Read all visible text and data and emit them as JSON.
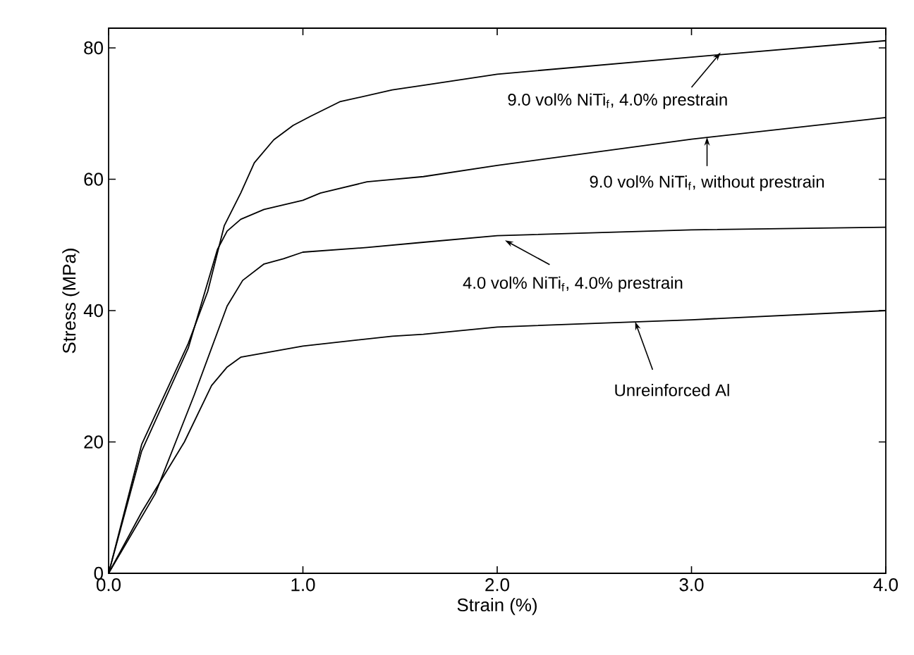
{
  "chart_data": {
    "type": "line",
    "xlabel": "Strain (%)",
    "ylabel": "Stress (MPa)",
    "xlim": [
      0,
      4
    ],
    "ylim": [
      0,
      83
    ],
    "xticks": [
      {
        "value": 0,
        "label": "0.0"
      },
      {
        "value": 1,
        "label": "1.0"
      },
      {
        "value": 2,
        "label": "2.0"
      },
      {
        "value": 3,
        "label": "3.0"
      },
      {
        "value": 4,
        "label": "4.0"
      }
    ],
    "yticks": [
      0,
      20,
      40,
      60,
      80
    ],
    "marker": "none",
    "line_style": "solid",
    "series": [
      {
        "color": "#000000",
        "x": [
          0,
          0.17,
          0.41,
          0.51,
          0.595,
          0.68,
          0.75,
          0.85,
          0.95,
          1.04,
          1.19,
          1.46,
          1.62,
          2.0,
          3.0,
          4.0
        ],
        "values": [
          0,
          19.6,
          35,
          42.9,
          52.9,
          57.9,
          62.5,
          66,
          68.2,
          69.6,
          71.8,
          73.6,
          74.3,
          76.0,
          78.6,
          81.1
        ]
      },
      {
        "color": "#000000",
        "x": [
          0,
          0.17,
          0.41,
          0.56,
          0.61,
          0.68,
          0.8,
          1.0,
          1.09,
          1.33,
          1.62,
          2.0,
          3.0,
          4.0
        ],
        "values": [
          0,
          18.6,
          34.3,
          49.3,
          52.1,
          53.9,
          55.4,
          56.8,
          57.9,
          59.6,
          60.4,
          62.1,
          66.1,
          69.4
        ]
      },
      {
        "color": "#000000",
        "x": [
          0,
          0.24,
          0.44,
          0.61,
          0.69,
          0.8,
          0.9,
          1.0,
          1.33,
          1.62,
          2.0,
          3.0,
          4.0
        ],
        "values": [
          0,
          12.1,
          27.1,
          40.7,
          44.6,
          47.1,
          47.9,
          48.9,
          49.6,
          50.4,
          51.4,
          52.3,
          52.7
        ]
      },
      {
        "color": "#000000",
        "x": [
          0,
          0.17,
          0.39,
          0.53,
          0.61,
          0.68,
          1.0,
          1.46,
          1.62,
          2.0,
          3.0,
          4.0
        ],
        "values": [
          0,
          9.3,
          20,
          28.6,
          31.4,
          32.9,
          34.6,
          36.1,
          36.4,
          37.5,
          38.6,
          40
        ]
      }
    ],
    "annotations": [
      {
        "text": "9.0 vol% NiTi$_{f}$, 4.0% prestrain",
        "x": 3.15,
        "y": 79.3
      },
      {
        "text": "9.0 vol% NiTi$_{f}$, without prestrain",
        "x": 3.08,
        "y": 66.4
      },
      {
        "text": "4.0 vol% NiTi$_{f}$, 4.0% prestrain",
        "x": 2.04,
        "y": 50.7
      },
      {
        "text": "Unreinforced Al",
        "x": 2.71,
        "y": 38.3
      }
    ]
  }
}
